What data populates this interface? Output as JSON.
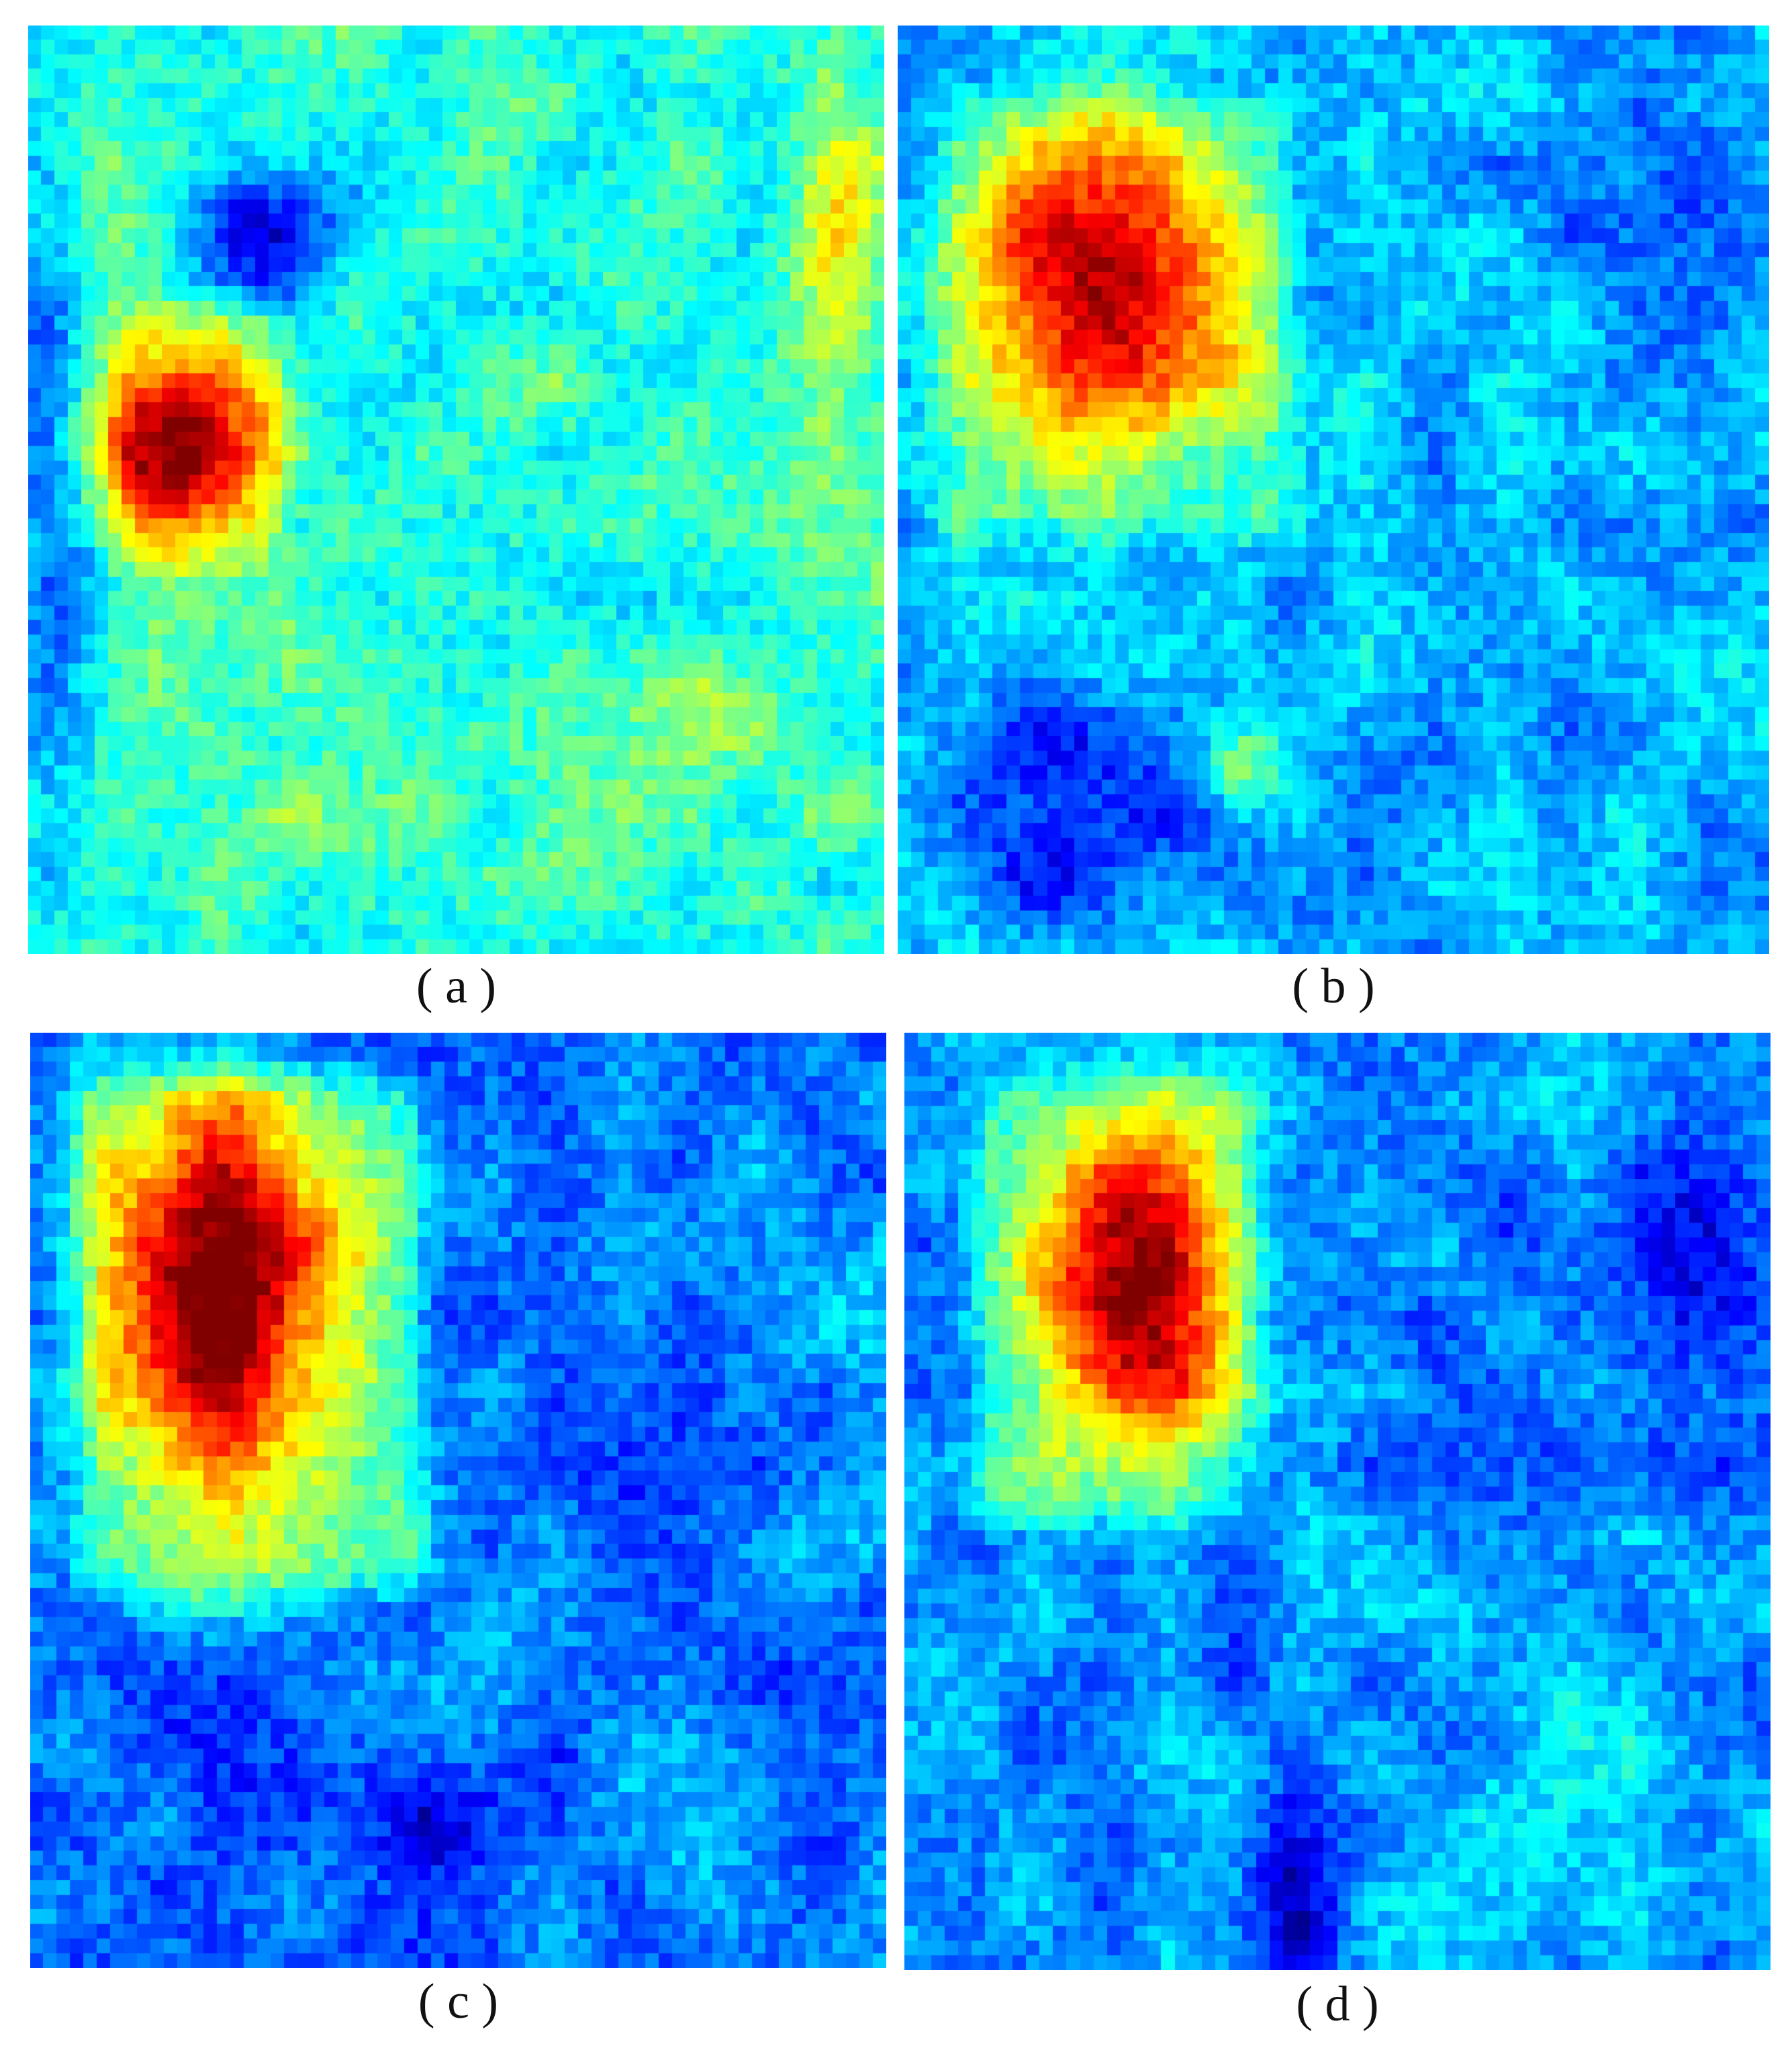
{
  "figure": {
    "panels": [
      {
        "id": "a",
        "caption": "( a )"
      },
      {
        "id": "b",
        "caption": "( b )"
      },
      {
        "id": "c",
        "caption": "( c )"
      },
      {
        "id": "d",
        "caption": "( d )"
      }
    ]
  }
}
